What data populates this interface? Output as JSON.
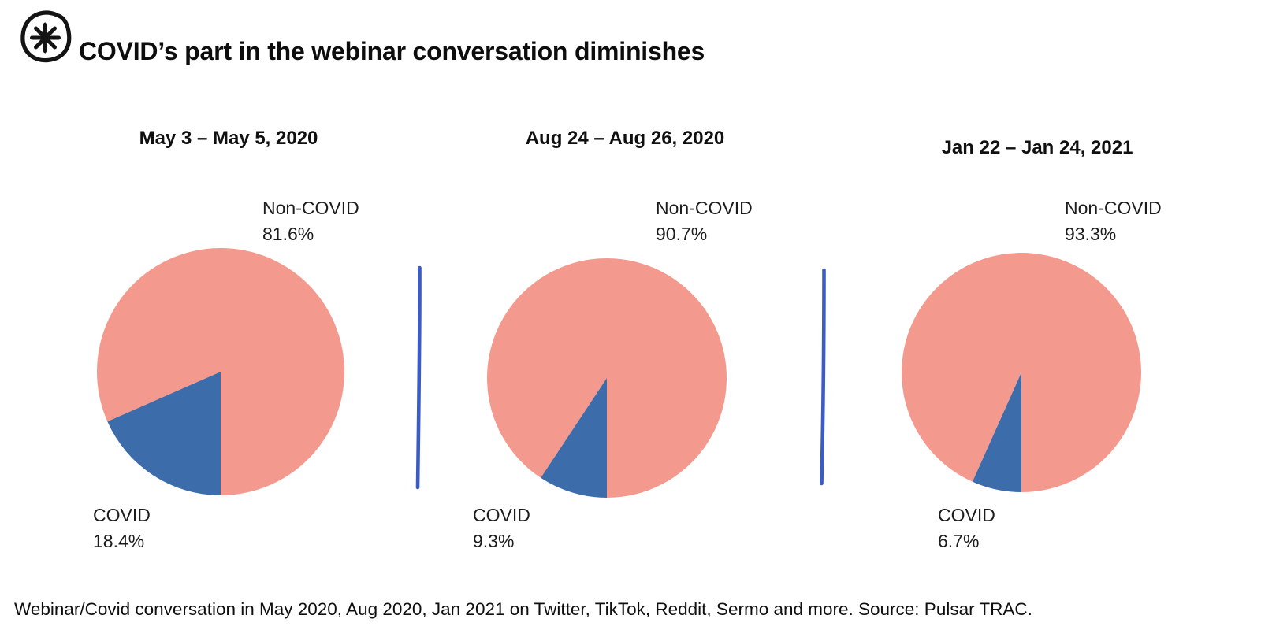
{
  "page": {
    "background": "#ffffff"
  },
  "header": {
    "title": "COVID’s part in the webinar conversation diminishes",
    "logo_icon": "asterisk-circle-logo-icon"
  },
  "chart_data": [
    {
      "type": "pie",
      "title": "May 3 – May 5, 2020",
      "labels": [
        "Non-COVID",
        "COVID"
      ],
      "values": [
        81.6,
        18.4
      ],
      "display_values": [
        "81.6%",
        "18.4%"
      ],
      "colors": [
        "#F4998D",
        "#3C6CA9"
      ],
      "start_angle_deg": 180,
      "direction": "clockwise",
      "first_slice": "COVID",
      "legend_position": "data-labels"
    },
    {
      "type": "pie",
      "title": "Aug 24 – Aug 26, 2020",
      "labels": [
        "Non-COVID",
        "COVID"
      ],
      "values": [
        90.7,
        9.3
      ],
      "display_values": [
        "90.7%",
        "9.3%"
      ],
      "colors": [
        "#F4998D",
        "#3C6CA9"
      ],
      "start_angle_deg": 180,
      "direction": "clockwise",
      "first_slice": "COVID",
      "legend_position": "data-labels"
    },
    {
      "type": "pie",
      "title": "Jan 22 – Jan 24, 2021",
      "labels": [
        "Non-COVID",
        "COVID"
      ],
      "values": [
        93.3,
        6.7
      ],
      "display_values": [
        "93.3%",
        "6.7%"
      ],
      "colors": [
        "#F4998D",
        "#3C6CA9"
      ],
      "start_angle_deg": 180,
      "direction": "clockwise",
      "first_slice": "COVID",
      "legend_position": "data-labels"
    }
  ],
  "footer": {
    "caption": "Webinar/Covid conversation in May 2020, Aug 2020, Jan 2021 on Twitter, TikTok, Reddit, Sermo and more. Source: Pulsar TRAC."
  },
  "colors": {
    "non_covid": "#F4998D",
    "covid": "#3C6CA9",
    "divider": "#3B5BC5",
    "text": "#141414"
  }
}
